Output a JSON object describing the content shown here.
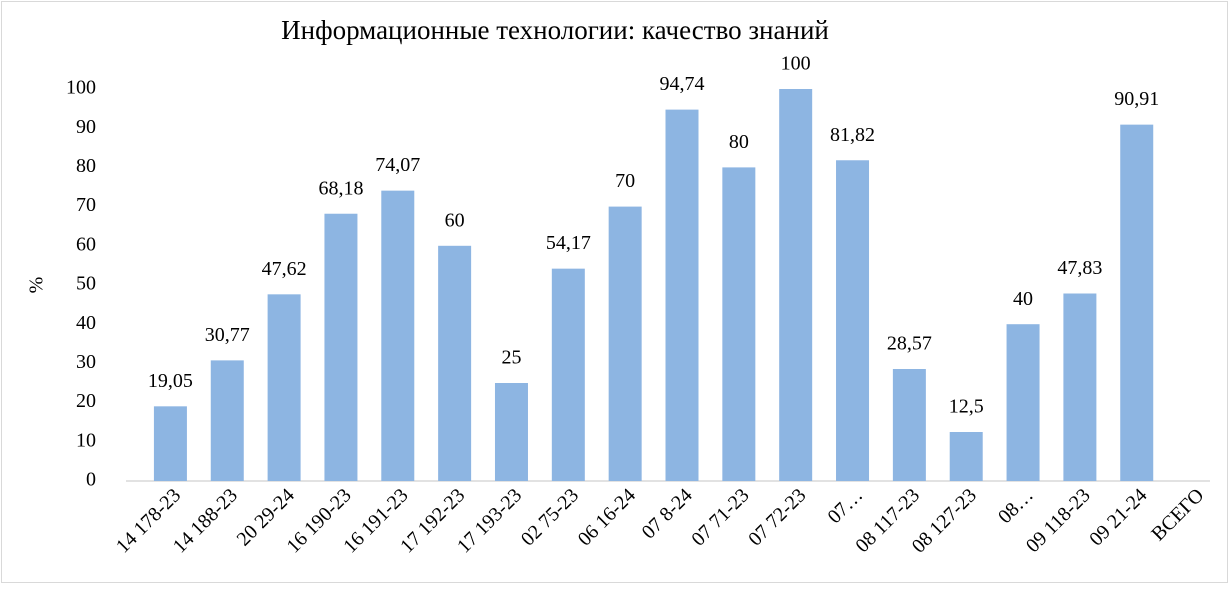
{
  "chart_data": {
    "type": "bar",
    "title": "Информационные технологии: качество знаний",
    "y_label": "%",
    "categories": [
      "14 178-23",
      "14 188-23",
      "20 29-24",
      "16 190-23",
      "16 191-23",
      "17 192-23",
      "17 193-23",
      "02 75-23",
      "06 16-24",
      "07 8-24",
      "07 71-23",
      "07 72-23",
      "07…",
      "08 117-23",
      "08 127-23",
      "08…",
      "09 118-23",
      "09 21-24",
      "ВСЕГО"
    ],
    "values": [
      19.05,
      30.77,
      47.62,
      68.18,
      74.07,
      60,
      25,
      54.17,
      70,
      94.74,
      80,
      100,
      81.82,
      28.57,
      12.5,
      40,
      47.83,
      90.91,
      null
    ],
    "value_labels": [
      "19,05",
      "30,77",
      "47,62",
      "68,18",
      "74,07",
      "60",
      "25",
      "54,17",
      "70",
      "94,74",
      "80",
      "100",
      "81,82",
      "28,57",
      "12,5",
      "40",
      "47,83",
      "90,91",
      null
    ],
    "color": "#8db5e2",
    "ylim": [
      0,
      100
    ],
    "yticks": [
      0,
      10,
      20,
      30,
      40,
      50,
      60,
      70,
      80,
      90,
      100
    ],
    "grid": false
  }
}
